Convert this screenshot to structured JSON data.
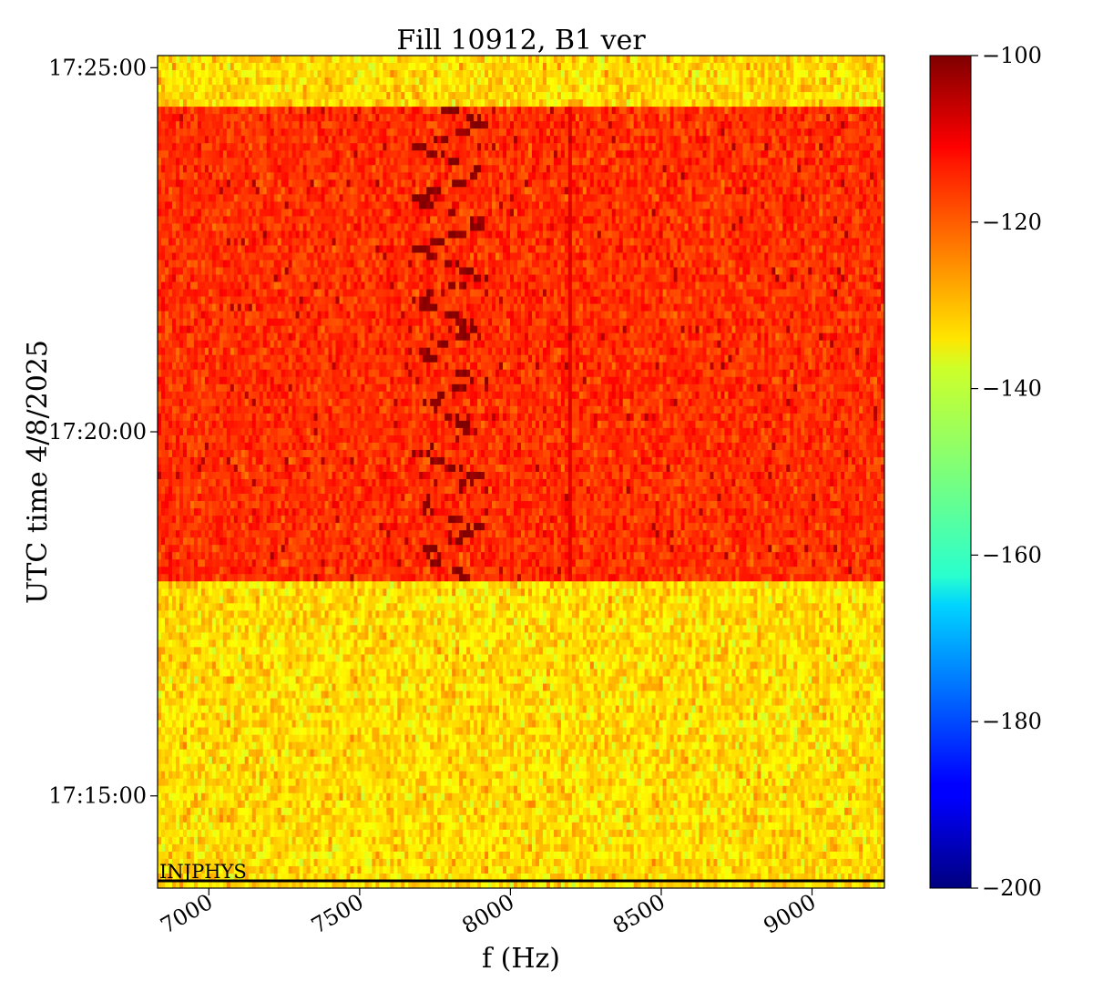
{
  "chart_data": {
    "type": "heatmap",
    "title": "Fill 10912, B1 ver",
    "xlabel": "f (Hz)",
    "ylabel": "UTC time 4/8/2025",
    "x_range_hz": [
      6830,
      9240
    ],
    "x_ticks": [
      7000,
      7500,
      8000,
      8500,
      9000
    ],
    "x_tick_labels": [
      "7000",
      "7500",
      "8000",
      "8500",
      "9000"
    ],
    "y_range_time": [
      "17:13:44",
      "17:25:10"
    ],
    "y_ticks": [
      {
        "time": "17:15:00",
        "label": "17:15:00"
      },
      {
        "time": "17:20:00",
        "label": "17:20:00"
      },
      {
        "time": "17:25:00",
        "label": "17:25:00"
      }
    ],
    "colorbar": {
      "colormap": "jet",
      "vmin": -200,
      "vmax": -100,
      "ticks": [
        -100,
        -120,
        -140,
        -160,
        -180,
        -200
      ],
      "tick_labels": [
        "−100",
        "−120",
        "−140",
        "−160",
        "−180",
        "−200"
      ]
    },
    "regions": [
      {
        "from": "17:13:44",
        "to": "17:17:58",
        "level_db": -134,
        "spread_db": 5
      },
      {
        "from": "17:17:58",
        "to": "17:24:26",
        "level_db": -117,
        "spread_db": 4
      },
      {
        "from": "17:24:26",
        "to": "17:25:10",
        "level_db": -134,
        "spread_db": 5
      }
    ],
    "signal_line": {
      "description_hidden": false,
      "freq_hz_approx": [
        7700,
        7900
      ],
      "level_db": -101,
      "time_from": "17:17:58",
      "time_to": "17:24:26"
    },
    "secondary_line_hz": 8200,
    "annotation": {
      "text": "INJPHYS",
      "time": "17:13:50"
    }
  }
}
